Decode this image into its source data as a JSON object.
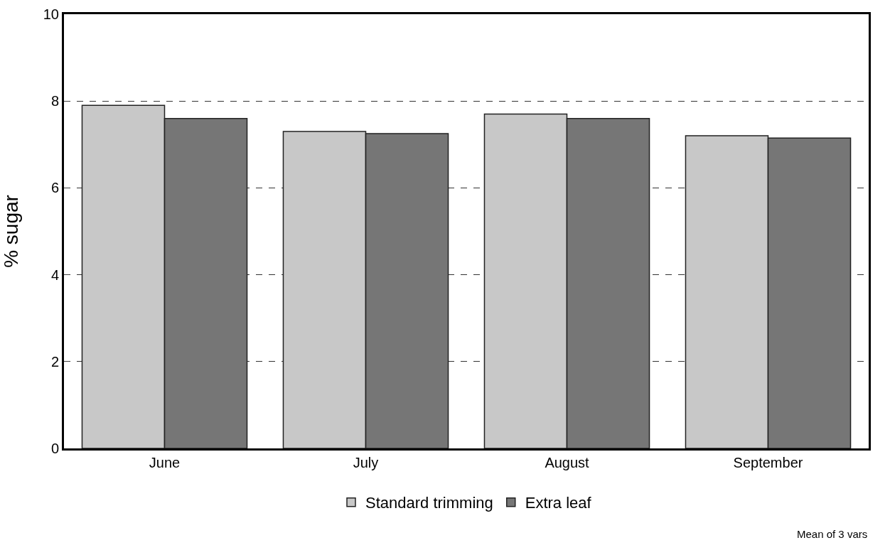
{
  "chart_data": {
    "type": "bar",
    "ylabel": "% sugar",
    "categories": [
      "June",
      "July",
      "August",
      "September"
    ],
    "series": [
      {
        "name": "Standard trimming",
        "color": "#c8c8c8",
        "values": [
          7.9,
          7.3,
          7.7,
          7.2
        ]
      },
      {
        "name": "Extra leaf",
        "color": "#767676",
        "values": [
          7.6,
          7.25,
          7.6,
          7.15
        ]
      }
    ],
    "ylim": [
      0,
      10
    ],
    "yticks": [
      0,
      2,
      4,
      6,
      8,
      10
    ],
    "grid": "y",
    "line_style": "dashed",
    "legend": "bottom",
    "annotations": [
      "Mean of 3 vars"
    ]
  }
}
